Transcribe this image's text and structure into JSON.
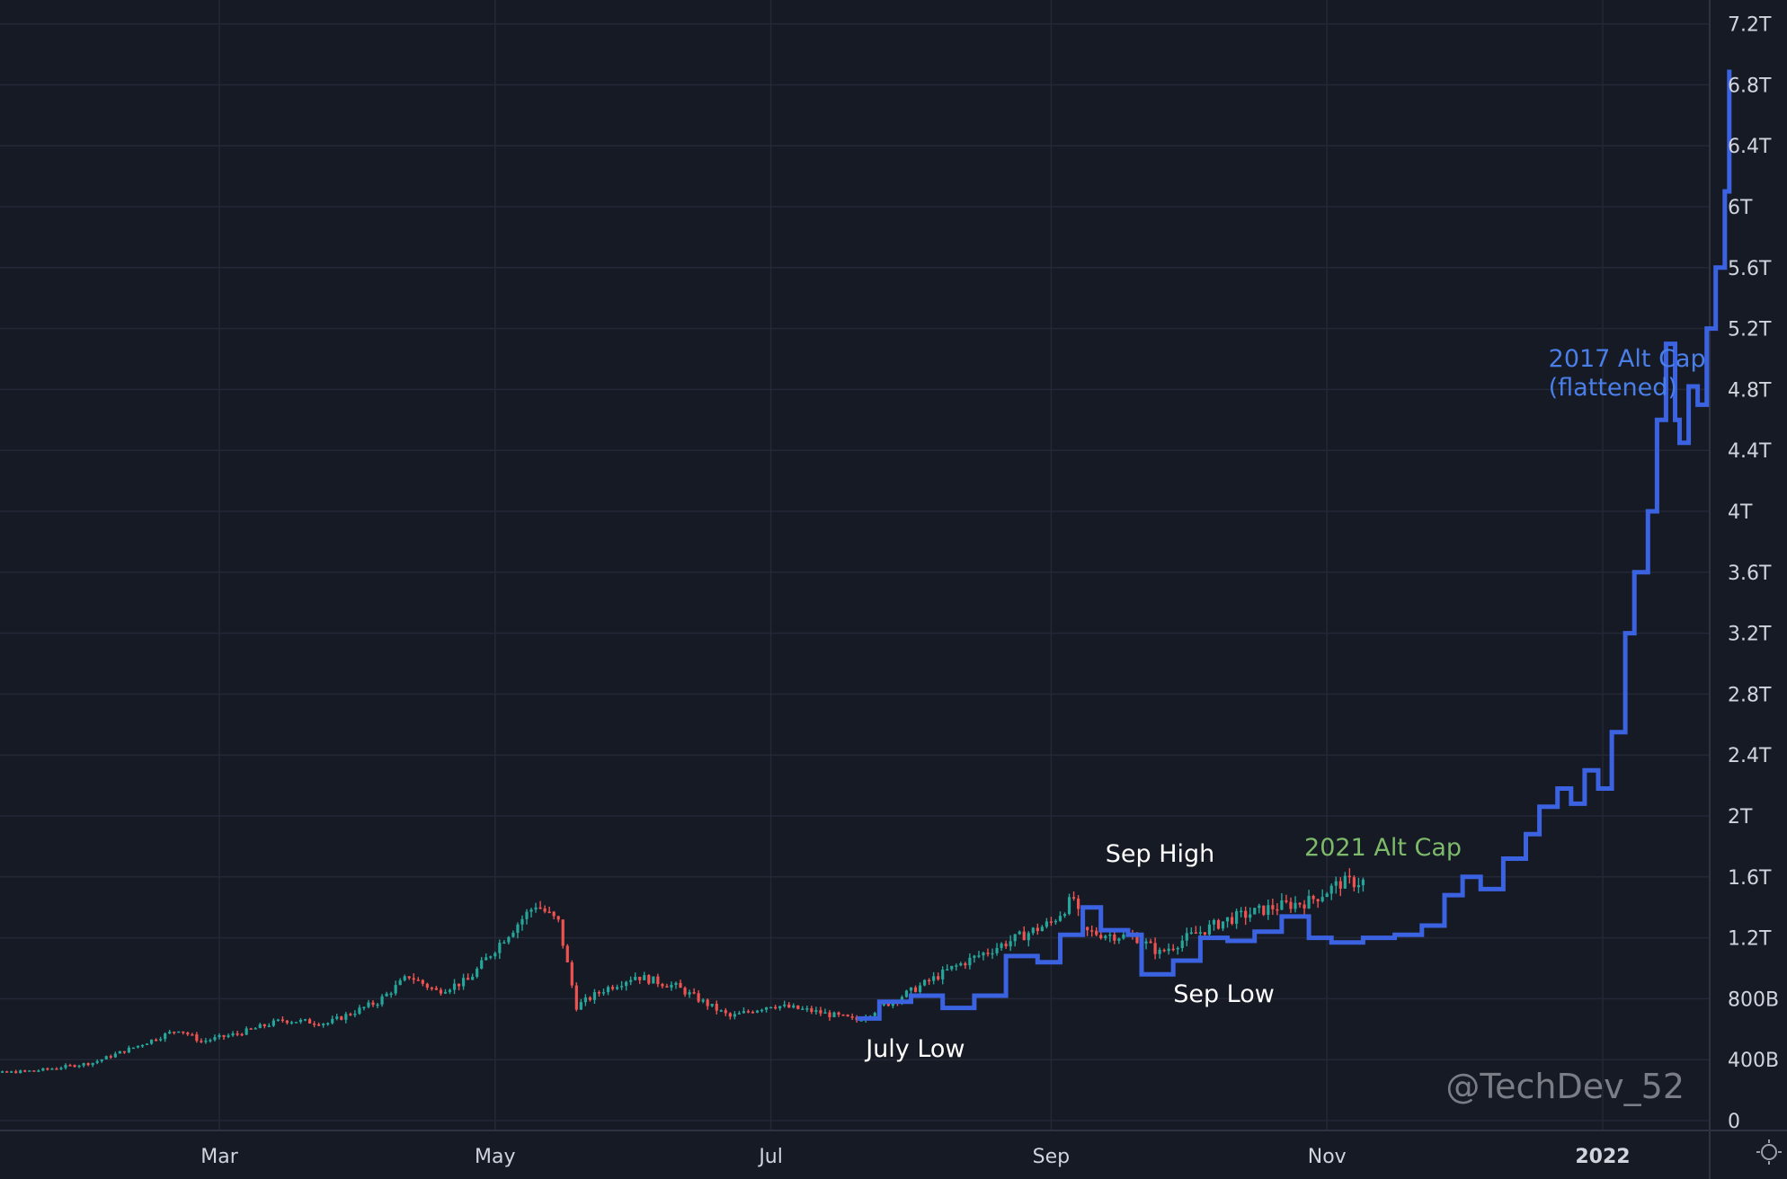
{
  "chart_data": {
    "type": "line",
    "title": "",
    "xlabel": "",
    "ylabel": "",
    "x_ticks": [
      {
        "label": "Mar",
        "date": "2021-03-01"
      },
      {
        "label": "May",
        "date": "2021-05-01"
      },
      {
        "label": "Jul",
        "date": "2021-07-01"
      },
      {
        "label": "Sep",
        "date": "2021-09-01"
      },
      {
        "label": "Nov",
        "date": "2021-11-01"
      },
      {
        "label": "2022",
        "date": "2022-01-01",
        "bold": true
      }
    ],
    "y_ticks": [
      "0",
      "400B",
      "800B",
      "1.2T",
      "1.6T",
      "2T",
      "2.4T",
      "2.8T",
      "3.2T",
      "3.6T",
      "4T",
      "4.4T",
      "4.8T",
      "5.2T",
      "5.6T",
      "6T",
      "6.4T",
      "6.8T",
      "7.2T"
    ],
    "y_tick_values": [
      0,
      0.4,
      0.8,
      1.2,
      1.6,
      2.0,
      2.4,
      2.8,
      3.2,
      3.6,
      4.0,
      4.4,
      4.8,
      5.2,
      5.6,
      6.0,
      6.4,
      6.8,
      7.2
    ],
    "x_range": [
      "2021-01-01",
      "2022-02-01"
    ],
    "ylim": [
      0,
      7.35
    ],
    "y_units": "trillions USD",
    "grid": true,
    "series": [
      {
        "name": "2021 Alt Cap",
        "style": "candlestick",
        "color_up": "#26a69a",
        "color_down": "#ef5350",
        "points": [
          [
            "2021-01-01",
            0.29
          ],
          [
            "2021-01-10",
            0.31
          ],
          [
            "2021-01-20",
            0.33
          ],
          [
            "2021-02-01",
            0.38
          ],
          [
            "2021-02-10",
            0.48
          ],
          [
            "2021-02-20",
            0.6
          ],
          [
            "2021-02-25",
            0.52
          ],
          [
            "2021-03-05",
            0.57
          ],
          [
            "2021-03-15",
            0.66
          ],
          [
            "2021-03-25",
            0.64
          ],
          [
            "2021-04-05",
            0.78
          ],
          [
            "2021-04-12",
            0.95
          ],
          [
            "2021-04-18",
            0.85
          ],
          [
            "2021-04-25",
            0.92
          ],
          [
            "2021-05-03",
            1.2
          ],
          [
            "2021-05-10",
            1.42
          ],
          [
            "2021-05-15",
            1.3
          ],
          [
            "2021-05-19",
            0.75
          ],
          [
            "2021-05-25",
            0.86
          ],
          [
            "2021-06-01",
            0.95
          ],
          [
            "2021-06-10",
            0.88
          ],
          [
            "2021-06-22",
            0.68
          ],
          [
            "2021-07-01",
            0.76
          ],
          [
            "2021-07-10",
            0.72
          ],
          [
            "2021-07-20",
            0.66
          ],
          [
            "2021-08-01",
            0.85
          ],
          [
            "2021-08-10",
            1.0
          ],
          [
            "2021-08-20",
            1.14
          ],
          [
            "2021-09-01",
            1.3
          ],
          [
            "2021-09-06",
            1.46
          ],
          [
            "2021-09-08",
            1.24
          ],
          [
            "2021-09-20",
            1.2
          ],
          [
            "2021-09-25",
            1.1
          ],
          [
            "2021-10-01",
            1.2
          ],
          [
            "2021-10-10",
            1.32
          ],
          [
            "2021-10-20",
            1.4
          ],
          [
            "2021-10-28",
            1.44
          ],
          [
            "2021-11-04",
            1.56
          ],
          [
            "2021-11-09",
            1.57
          ]
        ]
      },
      {
        "name": "2017 Alt Cap (flattened)",
        "style": "line",
        "color": "#3b62e0",
        "points": [
          [
            "2021-07-20",
            0.67
          ],
          [
            "2021-07-25",
            0.78
          ],
          [
            "2021-08-01",
            0.82
          ],
          [
            "2021-08-08",
            0.74
          ],
          [
            "2021-08-15",
            0.82
          ],
          [
            "2021-08-22",
            1.08
          ],
          [
            "2021-08-29",
            1.04
          ],
          [
            "2021-09-03",
            1.22
          ],
          [
            "2021-09-08",
            1.4
          ],
          [
            "2021-09-12",
            1.25
          ],
          [
            "2021-09-18",
            1.22
          ],
          [
            "2021-09-21",
            0.96
          ],
          [
            "2021-09-28",
            1.05
          ],
          [
            "2021-10-04",
            1.2
          ],
          [
            "2021-10-10",
            1.18
          ],
          [
            "2021-10-16",
            1.24
          ],
          [
            "2021-10-22",
            1.34
          ],
          [
            "2021-10-28",
            1.2
          ],
          [
            "2021-11-02",
            1.17
          ],
          [
            "2021-11-09",
            1.2
          ],
          [
            "2021-11-16",
            1.22
          ],
          [
            "2021-11-22",
            1.28
          ],
          [
            "2021-11-27",
            1.48
          ],
          [
            "2021-12-01",
            1.6
          ],
          [
            "2021-12-05",
            1.52
          ],
          [
            "2021-12-10",
            1.72
          ],
          [
            "2021-12-15",
            1.88
          ],
          [
            "2021-12-18",
            2.06
          ],
          [
            "2021-12-22",
            2.18
          ],
          [
            "2021-12-25",
            2.08
          ],
          [
            "2021-12-28",
            2.3
          ],
          [
            "2021-12-31",
            2.18
          ],
          [
            "2022-01-03",
            2.55
          ],
          [
            "2022-01-06",
            3.2
          ],
          [
            "2022-01-08",
            3.6
          ],
          [
            "2022-01-11",
            4.0
          ],
          [
            "2022-01-13",
            4.6
          ],
          [
            "2022-01-15",
            5.1
          ],
          [
            "2022-01-17",
            4.6
          ],
          [
            "2022-01-18",
            4.45
          ],
          [
            "2022-01-20",
            4.82
          ],
          [
            "2022-01-22",
            4.7
          ],
          [
            "2022-01-24",
            5.2
          ],
          [
            "2022-01-26",
            5.6
          ],
          [
            "2022-01-28",
            6.1
          ],
          [
            "2022-01-29",
            6.9
          ]
        ]
      }
    ],
    "annotations": [
      {
        "text": "July Low",
        "date": "2021-07-22",
        "value": 0.42,
        "color": "#ffffff"
      },
      {
        "text": "Sep High",
        "date": "2021-09-13",
        "value": 1.7,
        "color": "#ffffff"
      },
      {
        "text": "Sep Low",
        "date": "2021-09-28",
        "value": 0.78,
        "color": "#ffffff"
      },
      {
        "text": "2021 Alt Cap",
        "date": "2021-10-27",
        "value": 1.74,
        "color": "#7dbb6a"
      },
      {
        "text": "2017 Alt Cap",
        "date": "2021-12-20",
        "value": 4.95,
        "color": "#4a7ee8"
      },
      {
        "text": "(flattened)",
        "date": "2021-12-20",
        "value": 4.76,
        "color": "#4a7ee8"
      }
    ],
    "watermark": "@TechDev_52"
  }
}
